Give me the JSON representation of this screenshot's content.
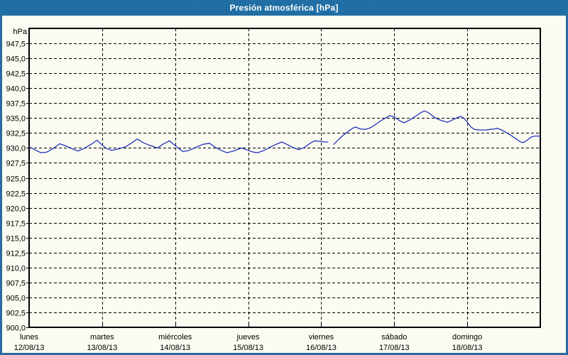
{
  "window": {
    "title": "Presión atmosférica [hPa]"
  },
  "colors": {
    "titlebar": "#2170a7",
    "window_border": "#2a6a9f",
    "title_text": "#ffffff",
    "background": "#fbfbf2",
    "grid": "#000000",
    "text": "#000000",
    "line": "#2233bb"
  },
  "chart_data": {
    "type": "line",
    "title": "Presión atmosférica [hPa]",
    "unit_label": "hPa",
    "ylabel": "hPa",
    "xlabel": "",
    "ylim": [
      900,
      950
    ],
    "xlim_days": [
      0,
      7
    ],
    "grid": "dashed",
    "legend": "none",
    "y_ticks": [
      {
        "value": 947.5,
        "label": "947,5"
      },
      {
        "value": 945.0,
        "label": "945,0"
      },
      {
        "value": 942.5,
        "label": "942,5"
      },
      {
        "value": 940.0,
        "label": "940,0"
      },
      {
        "value": 937.5,
        "label": "937,5"
      },
      {
        "value": 935.0,
        "label": "935,0"
      },
      {
        "value": 932.5,
        "label": "932,5"
      },
      {
        "value": 930.0,
        "label": "930,0"
      },
      {
        "value": 927.5,
        "label": "927,5"
      },
      {
        "value": 925.0,
        "label": "925,0"
      },
      {
        "value": 922.5,
        "label": "922,5"
      },
      {
        "value": 920.0,
        "label": "920,0"
      },
      {
        "value": 917.5,
        "label": "917,5"
      },
      {
        "value": 915.0,
        "label": "915,0"
      },
      {
        "value": 912.5,
        "label": "912,5"
      },
      {
        "value": 910.0,
        "label": "910,0"
      },
      {
        "value": 907.5,
        "label": "907,5"
      },
      {
        "value": 905.0,
        "label": "905,0"
      },
      {
        "value": 902.5,
        "label": "902,5"
      },
      {
        "value": 900.0,
        "label": "900,0"
      }
    ],
    "days": [
      {
        "name": "lunes",
        "date": "12/08/13"
      },
      {
        "name": "martes",
        "date": "13/08/13"
      },
      {
        "name": "miércoles",
        "date": "14/08/13"
      },
      {
        "name": "jueves",
        "date": "15/08/13"
      },
      {
        "name": "viernes",
        "date": "16/08/13"
      },
      {
        "name": "sábado",
        "date": "17/08/13"
      },
      {
        "name": "domingo",
        "date": "18/08/13"
      }
    ],
    "series": [
      {
        "name": "Presión atmosférica",
        "x_days": [
          0.0,
          0.08,
          0.16,
          0.24,
          0.33,
          0.42,
          0.49,
          0.55,
          0.62,
          0.67,
          0.75,
          0.85,
          0.93,
          1.0,
          1.06,
          1.13,
          1.21,
          1.32,
          1.4,
          1.48,
          1.56,
          1.64,
          1.71,
          1.76,
          1.83,
          1.92,
          2.0,
          2.06,
          2.11,
          2.19,
          2.28,
          2.38,
          2.47,
          2.55,
          2.63,
          2.71,
          2.8,
          2.91,
          3.0,
          3.07,
          3.13,
          3.22,
          3.31,
          3.4,
          3.46,
          3.53,
          3.61,
          3.69,
          3.77,
          3.85,
          3.91,
          3.98,
          4.05,
          4.09,
          4.13,
          4.17,
          4.22,
          4.28,
          4.35,
          4.43,
          4.47,
          4.53,
          4.6,
          4.66,
          4.73,
          4.81,
          4.89,
          4.94,
          5.0,
          5.07,
          5.13,
          5.2,
          5.28,
          5.35,
          5.41,
          5.47,
          5.53,
          5.6,
          5.67,
          5.73,
          5.8,
          5.87,
          5.91,
          5.96,
          6.0,
          6.05,
          6.1,
          6.17,
          6.24,
          6.31,
          6.38,
          6.41,
          6.47,
          6.53,
          6.6,
          6.67,
          6.73,
          6.77,
          6.82,
          6.87,
          6.92,
          6.97,
          7.0
        ],
        "values": [
          930.2,
          929.7,
          929.2,
          929.3,
          929.9,
          930.7,
          930.4,
          930.1,
          929.7,
          929.5,
          929.9,
          930.6,
          931.3,
          930.5,
          929.9,
          929.6,
          929.8,
          930.2,
          930.8,
          931.5,
          930.9,
          930.5,
          930.2,
          930.0,
          930.6,
          931.2,
          930.4,
          929.8,
          929.4,
          929.6,
          930.1,
          930.6,
          930.8,
          930.1,
          929.6,
          929.2,
          929.5,
          930.0,
          929.6,
          929.3,
          929.2,
          929.6,
          930.2,
          930.7,
          931.0,
          930.6,
          930.1,
          929.7,
          930.1,
          930.8,
          931.2,
          931.1,
          931.0,
          931.0,
          null,
          930.6,
          931.2,
          931.9,
          932.6,
          933.3,
          933.5,
          933.2,
          933.1,
          933.3,
          933.8,
          934.5,
          935.1,
          935.4,
          935.2,
          934.6,
          934.2,
          934.6,
          935.2,
          935.8,
          936.2,
          935.9,
          935.3,
          934.8,
          934.5,
          934.3,
          934.7,
          935.1,
          935.3,
          934.9,
          934.3,
          933.5,
          933.1,
          933.0,
          933.0,
          933.1,
          933.2,
          933.3,
          933.0,
          932.6,
          932.1,
          931.5,
          931.0,
          930.9,
          931.3,
          931.8,
          932.0,
          932.0,
          931.9
        ]
      }
    ]
  }
}
